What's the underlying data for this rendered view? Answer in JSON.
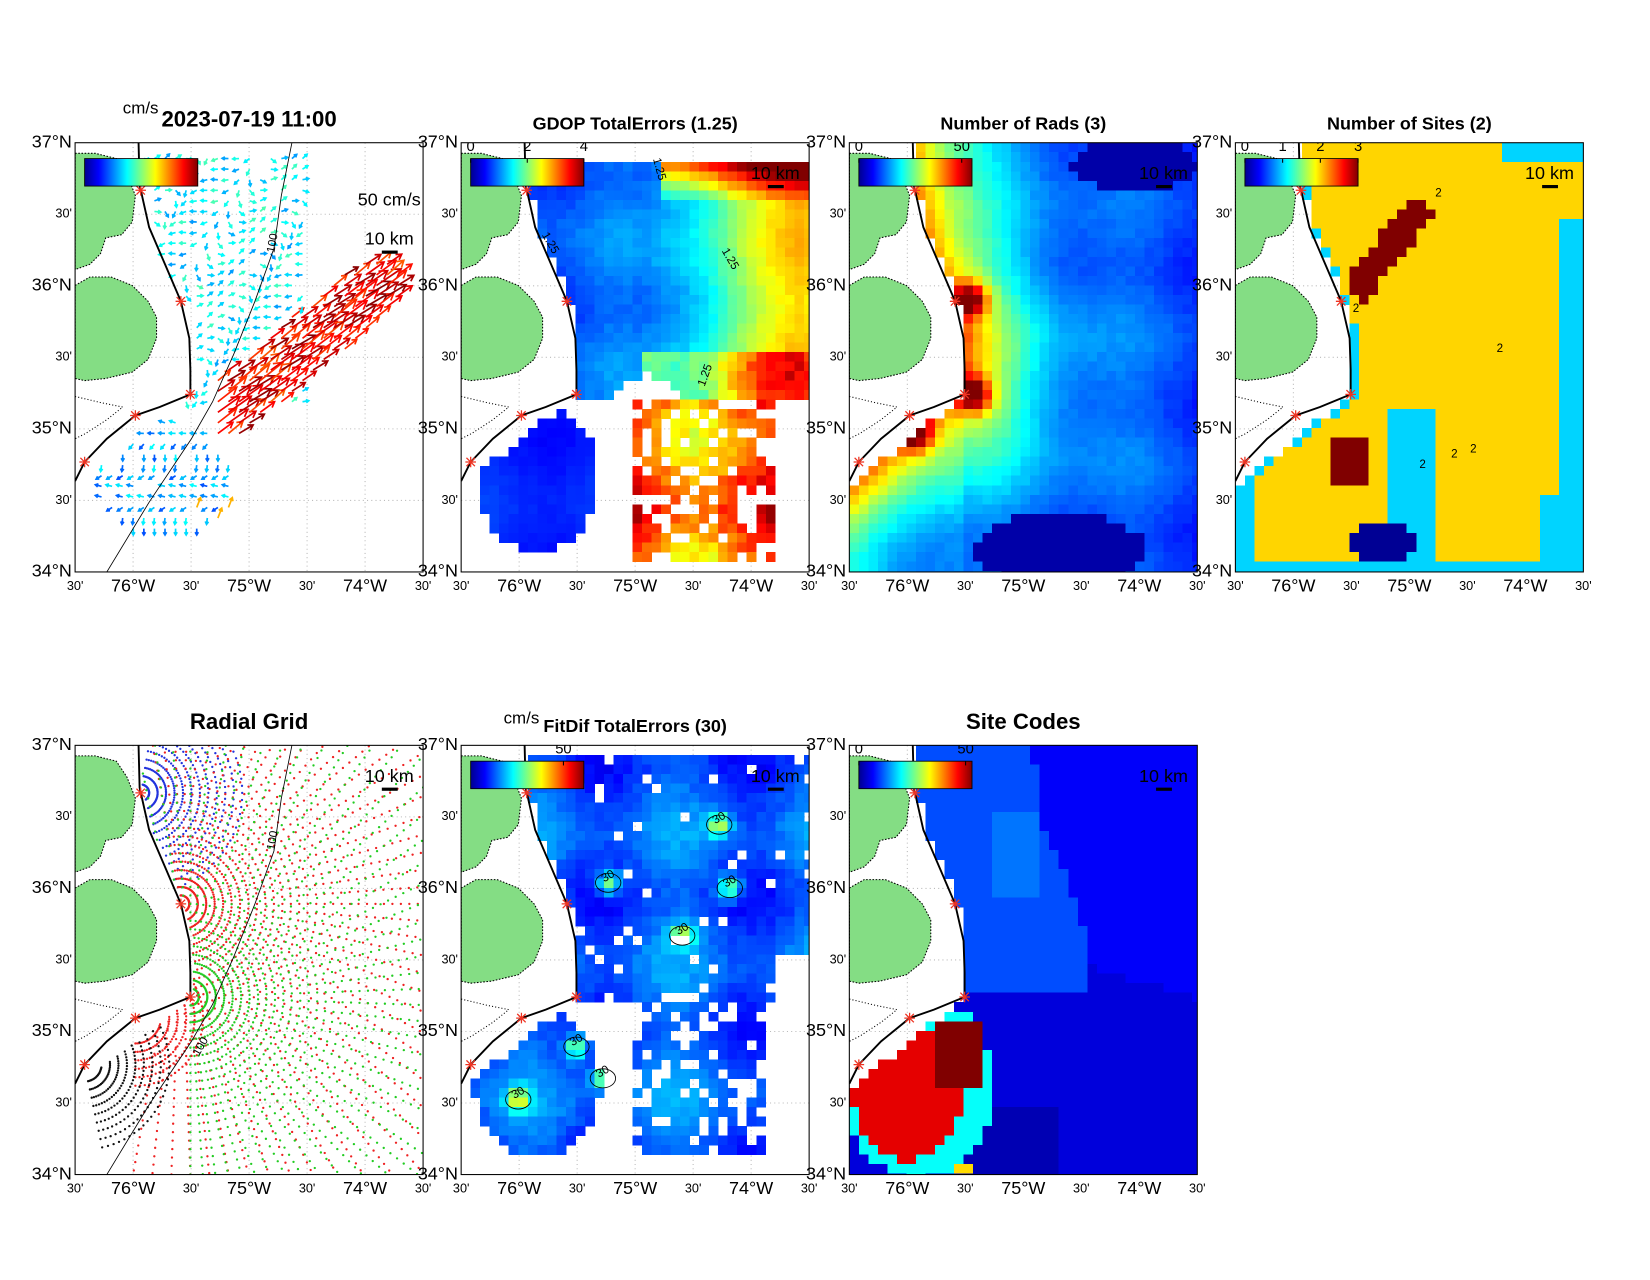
{
  "lat_labels": [
    "37°N",
    "30'",
    "36°N",
    "30'",
    "35°N",
    "30'",
    "34°N"
  ],
  "lon_labels": [
    "30'",
    "76°W",
    "30'",
    "75°W",
    "30'",
    "74°W",
    "30'"
  ],
  "scale_label": "10 km",
  "panels": [
    {
      "title": "2023-07-19 11:00",
      "colorbar_unit": "cm/s",
      "vector_scale": "50 cm/s",
      "contour_label": "100"
    },
    {
      "title": "GDOP TotalErrors (1.25)",
      "colorbar": {
        "lim": [
          0,
          4
        ],
        "ticks": [
          0,
          2,
          4
        ]
      },
      "contour_label": "1.25"
    },
    {
      "title": "Number of Rads (3)",
      "colorbar": {
        "lim": [
          0,
          55
        ],
        "ticks": [
          0,
          50
        ]
      }
    },
    {
      "title": "Number of Sites (2)",
      "colorbar": {
        "lim": [
          0,
          3
        ],
        "ticks": [
          0,
          1,
          2,
          3
        ]
      },
      "contour_label": "2"
    },
    {
      "title": "Radial Grid",
      "contour_label": "100"
    },
    {
      "title": "FitDif TotalErrors (30)",
      "colorbar_unit": "cm/s",
      "colorbar": {
        "lim": [
          0,
          61
        ],
        "ticks": [
          50
        ]
      },
      "contour_label": "30"
    },
    {
      "title": "Site Codes",
      "colorbar": {
        "lim": [
          0,
          53
        ],
        "ticks": [
          0,
          50
        ]
      }
    }
  ]
}
